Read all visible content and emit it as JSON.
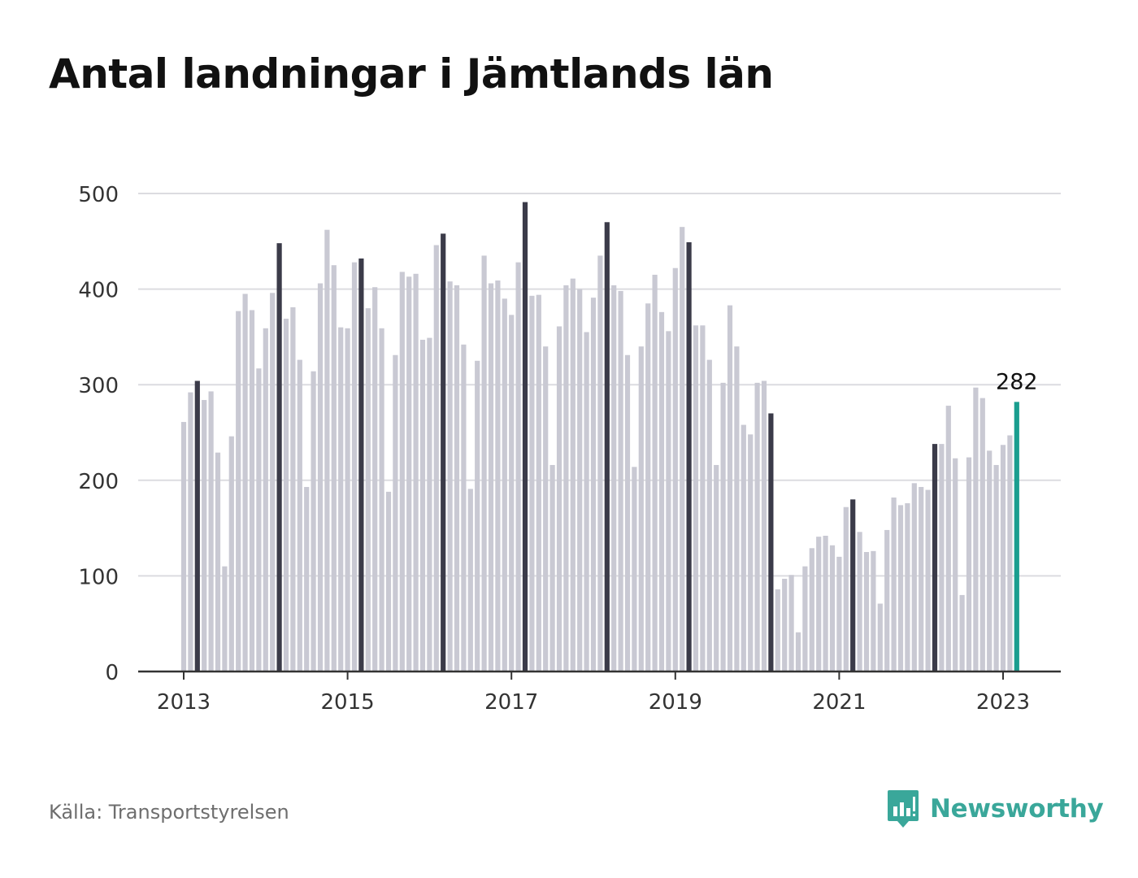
{
  "title": "Antal landningar i Jämtlands län",
  "source": "Källa: Transportstyrelsen",
  "brand": {
    "name": "Newsworthy",
    "icon": "newsworthy-logo-icon"
  },
  "colors": {
    "bar": "#c9c9d3",
    "highlight_bar": "#3b3b49",
    "last_bar": "#1a9e8f",
    "grid": "#dcdce0",
    "axis": "#333333",
    "brand": "#3aa79a"
  },
  "chart_data": {
    "type": "bar",
    "title": "Antal landningar i Jämtlands län",
    "xlabel": "",
    "ylabel": "",
    "ylim": [
      0,
      500
    ],
    "yticks": [
      0,
      100,
      200,
      300,
      400,
      500
    ],
    "xticks": [
      "2013",
      "2015",
      "2017",
      "2019",
      "2021",
      "2023"
    ],
    "grid": true,
    "annotation": {
      "label": "282",
      "target": "2023-03"
    },
    "highlight_month": "March",
    "categories": [
      "2013-01",
      "2013-02",
      "2013-03",
      "2013-04",
      "2013-05",
      "2013-06",
      "2013-07",
      "2013-08",
      "2013-09",
      "2013-10",
      "2013-11",
      "2013-12",
      "2014-01",
      "2014-02",
      "2014-03",
      "2014-04",
      "2014-05",
      "2014-06",
      "2014-07",
      "2014-08",
      "2014-09",
      "2014-10",
      "2014-11",
      "2014-12",
      "2015-01",
      "2015-02",
      "2015-03",
      "2015-04",
      "2015-05",
      "2015-06",
      "2015-07",
      "2015-08",
      "2015-09",
      "2015-10",
      "2015-11",
      "2015-12",
      "2016-01",
      "2016-02",
      "2016-03",
      "2016-04",
      "2016-05",
      "2016-06",
      "2016-07",
      "2016-08",
      "2016-09",
      "2016-10",
      "2016-11",
      "2016-12",
      "2017-01",
      "2017-02",
      "2017-03",
      "2017-04",
      "2017-05",
      "2017-06",
      "2017-07",
      "2017-08",
      "2017-09",
      "2017-10",
      "2017-11",
      "2017-12",
      "2018-01",
      "2018-02",
      "2018-03",
      "2018-04",
      "2018-05",
      "2018-06",
      "2018-07",
      "2018-08",
      "2018-09",
      "2018-10",
      "2018-11",
      "2018-12",
      "2019-01",
      "2019-02",
      "2019-03",
      "2019-04",
      "2019-05",
      "2019-06",
      "2019-07",
      "2019-08",
      "2019-09",
      "2019-10",
      "2019-11",
      "2019-12",
      "2020-01",
      "2020-02",
      "2020-03",
      "2020-04",
      "2020-05",
      "2020-06",
      "2020-07",
      "2020-08",
      "2020-09",
      "2020-10",
      "2020-11",
      "2020-12",
      "2021-01",
      "2021-02",
      "2021-03",
      "2021-04",
      "2021-05",
      "2021-06",
      "2021-07",
      "2021-08",
      "2021-09",
      "2021-10",
      "2021-11",
      "2021-12",
      "2022-01",
      "2022-02",
      "2022-03",
      "2022-04",
      "2022-05",
      "2022-06",
      "2022-07",
      "2022-08",
      "2022-09",
      "2022-10",
      "2022-11",
      "2022-12",
      "2023-01",
      "2023-02",
      "2023-03"
    ],
    "values": [
      261,
      292,
      304,
      284,
      293,
      229,
      110,
      246,
      377,
      395,
      378,
      317,
      359,
      396,
      448,
      369,
      381,
      326,
      193,
      314,
      406,
      462,
      425,
      360,
      359,
      428,
      432,
      380,
      402,
      359,
      188,
      331,
      418,
      413,
      416,
      347,
      349,
      446,
      458,
      408,
      404,
      342,
      191,
      325,
      435,
      406,
      409,
      390,
      373,
      428,
      491,
      393,
      394,
      340,
      216,
      361,
      404,
      411,
      400,
      355,
      391,
      435,
      470,
      404,
      398,
      331,
      214,
      340,
      385,
      415,
      376,
      356,
      422,
      465,
      449,
      362,
      362,
      326,
      216,
      302,
      383,
      340,
      258,
      248,
      302,
      304,
      270,
      86,
      97,
      101,
      41,
      110,
      129,
      141,
      142,
      132,
      120,
      172,
      180,
      146,
      125,
      126,
      71,
      148,
      182,
      174,
      176,
      197,
      193,
      190,
      238,
      238,
      278,
      223,
      80,
      224,
      297,
      286,
      231,
      216,
      237,
      247,
      282
    ]
  }
}
